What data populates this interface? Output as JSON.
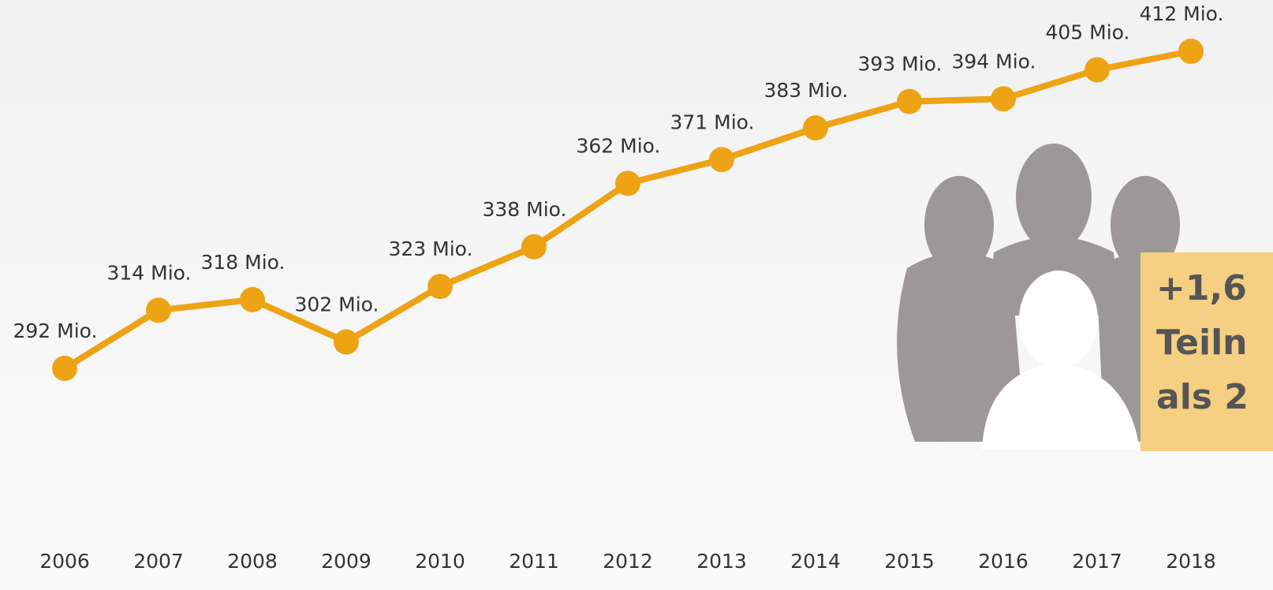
{
  "chart_data": {
    "type": "line",
    "categories": [
      "2006",
      "2007",
      "2008",
      "2009",
      "2010",
      "2011",
      "2012",
      "2013",
      "2014",
      "2015",
      "2016",
      "2017",
      "2018"
    ],
    "values": [
      292,
      314,
      318,
      302,
      323,
      338,
      362,
      371,
      383,
      393,
      394,
      405,
      412
    ],
    "value_labels": [
      "292 Mio.",
      "314 Mio.",
      "318 Mio.",
      "302 Mio.",
      "323 Mio.",
      "338 Mio.",
      "362 Mio.",
      "371 Mio.",
      "383 Mio.",
      "393 Mio.",
      "394 Mio.",
      "405 Mio.",
      "412 Mio."
    ],
    "color": "#eda314",
    "annotation": [
      "+1,6",
      "Teiln",
      "als 2"
    ]
  }
}
